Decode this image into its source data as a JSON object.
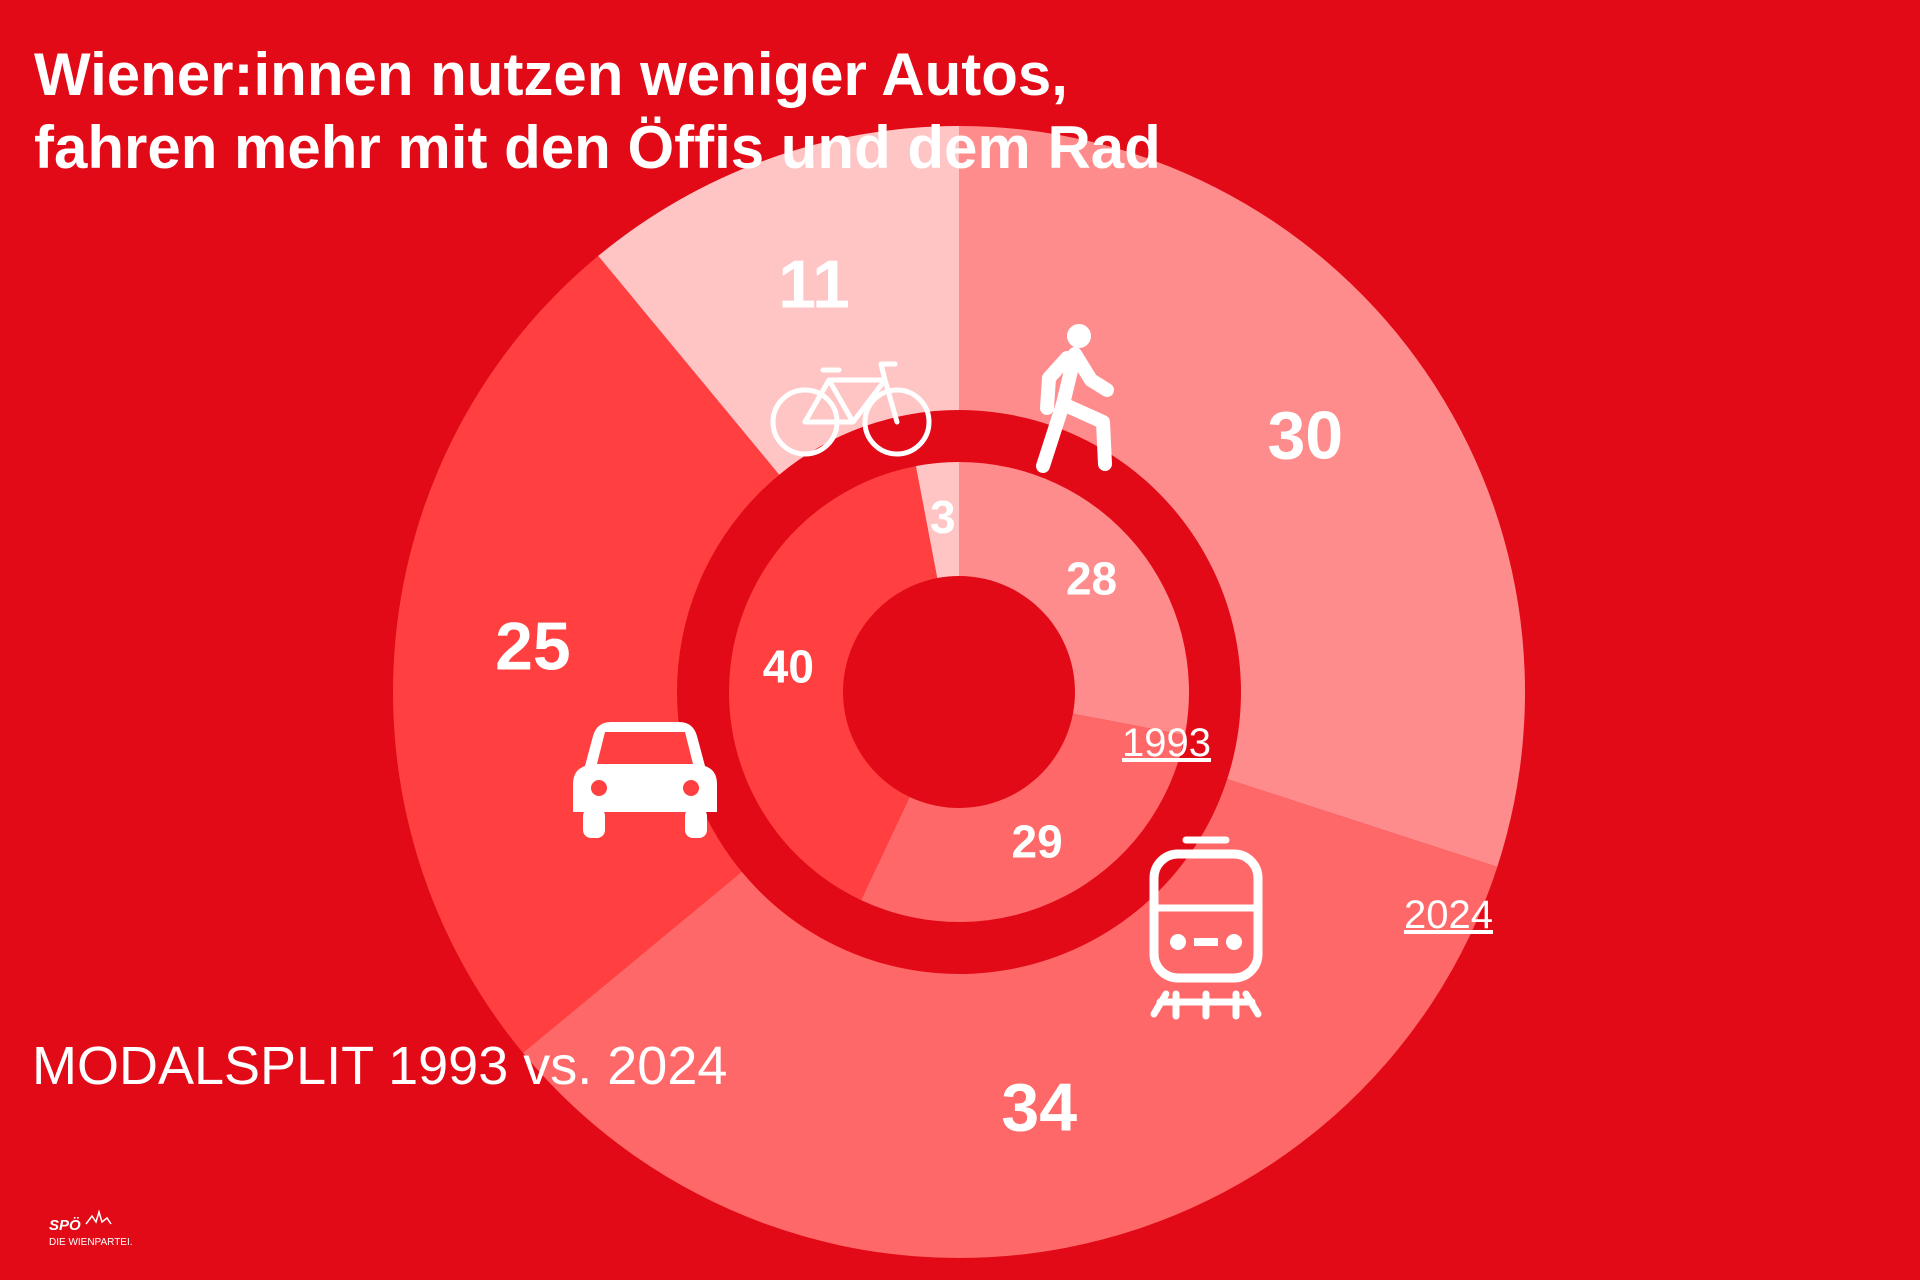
{
  "title_lines": [
    "Wiener:innen nutzen weniger Autos,",
    "fahren mehr mit den Öffis und dem Rad"
  ],
  "chart_data": {
    "type": "nested-donut",
    "subtitle": "MODALSPLIT 1993 vs. 2024",
    "colors": [
      "#ff8c8c",
      "#ff6868",
      "#ff3f40",
      "#ffc5c5"
    ],
    "series": [
      {
        "name": "1993",
        "values": [
          28,
          29,
          40,
          3
        ]
      },
      {
        "name": "2024",
        "values": [
          30,
          34,
          25,
          11
        ]
      }
    ]
  },
  "logo": {
    "name": "SPÖ",
    "tagline": "DIE WIENPARTEI."
  }
}
